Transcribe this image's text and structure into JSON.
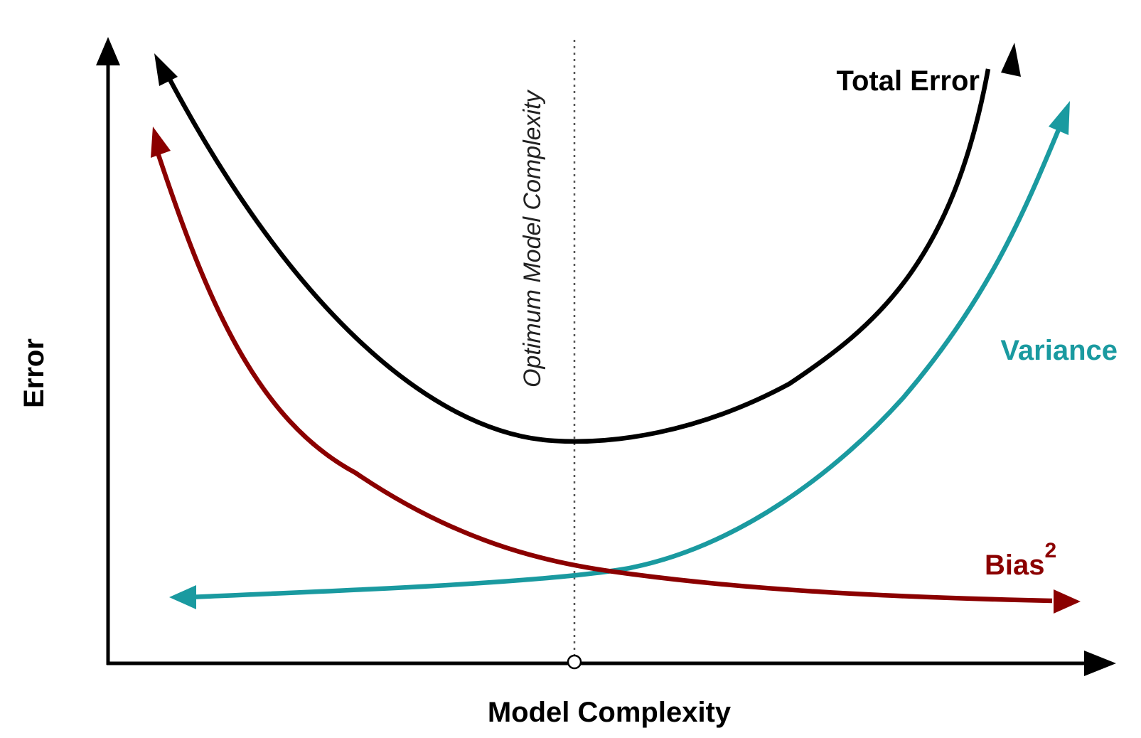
{
  "diagram": {
    "x_axis_label": "Model Complexity",
    "y_axis_label": "Error",
    "optimum_label": "Optimum Model Complexity",
    "curves": {
      "total_error": {
        "label": "Total Error",
        "color": "#000000"
      },
      "variance": {
        "label": "Variance",
        "color": "#1a9aa0"
      },
      "bias": {
        "label": "Bias",
        "superscript": "2",
        "color": "#8b0000"
      }
    },
    "axis_color": "#000000",
    "guide_line": "dotted vertical line at optimum"
  }
}
